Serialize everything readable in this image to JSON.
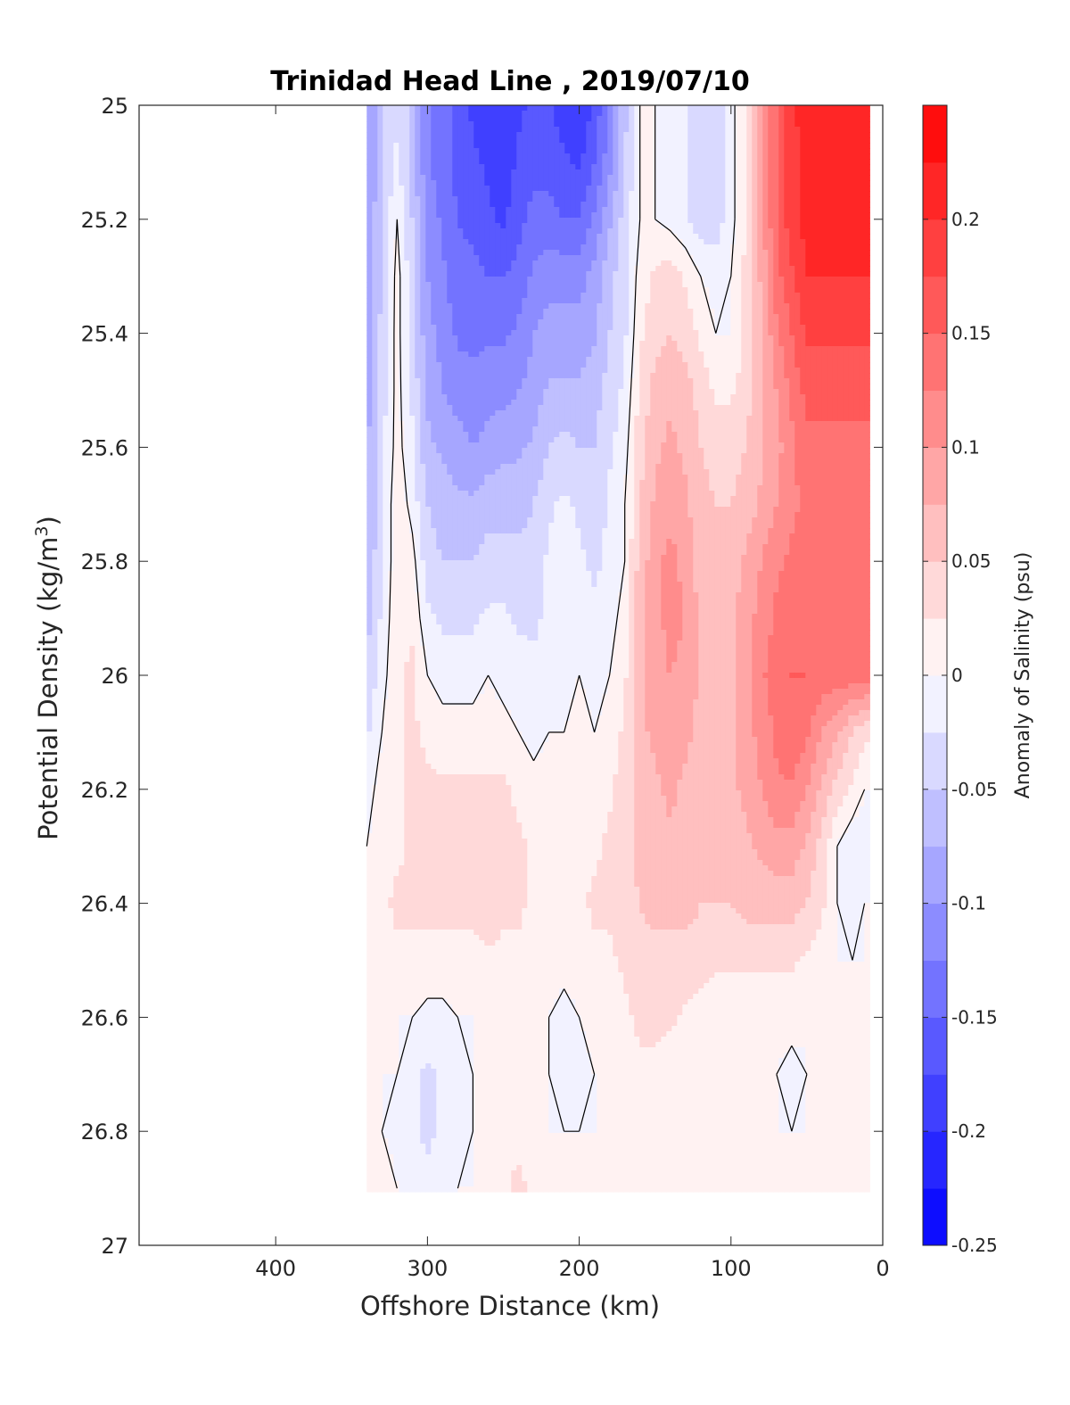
{
  "chart_data": {
    "type": "filled-contour",
    "title": "Trinidad Head Line , 2019/07/10",
    "xlabel": "Offshore Distance (km)",
    "ylabel_main": "Potential Density (kg/m",
    "ylabel_sup": "3",
    "ylabel_close": ")",
    "xlim": [
      490,
      0
    ],
    "x_reversed": true,
    "xticks": [
      400,
      300,
      200,
      100,
      0
    ],
    "xtick_labels": [
      "400",
      "300",
      "200",
      "100",
      "0"
    ],
    "ylim": [
      25,
      27
    ],
    "y_reversed": true,
    "yticks": [
      25,
      25.2,
      25.4,
      25.6,
      25.8,
      26,
      26.2,
      26.4,
      26.6,
      26.8,
      27
    ],
    "ytick_labels": [
      "25",
      "25.2",
      "25.4",
      "25.6",
      "25.8",
      "26",
      "26.2",
      "26.4",
      "26.6",
      "26.8",
      "27"
    ],
    "colorbar": {
      "label": "Anomaly of Salinity (psu)",
      "range": [
        -0.25,
        0.25
      ],
      "ticks": [
        -0.25,
        -0.2,
        -0.15,
        -0.1,
        -0.05,
        0,
        0.05,
        0.1,
        0.15,
        0.2
      ],
      "tick_labels": [
        "-0.25",
        "-0.2",
        "-0.15",
        "-0.1",
        "-0.05",
        "0",
        "0.05",
        "0.1",
        "0.15",
        "0.2"
      ],
      "level_step": 0.025,
      "colormap": "blue-white-red",
      "low_color": "#0000ff",
      "mid_color": "#ffffff",
      "high_color": "#ff0000"
    },
    "grid_x": [
      340,
      330,
      320,
      310,
      300,
      290,
      280,
      270,
      260,
      250,
      240,
      230,
      220,
      210,
      200,
      190,
      180,
      170,
      160,
      150,
      140,
      130,
      120,
      110,
      100,
      90,
      80,
      70,
      60,
      50,
      40,
      30,
      20,
      12
    ],
    "grid_y": [
      25.0,
      25.1,
      25.2,
      25.3,
      25.4,
      25.5,
      25.6,
      25.7,
      25.8,
      25.9,
      26.0,
      26.1,
      26.2,
      26.3,
      26.4,
      26.5,
      26.6,
      26.7,
      26.8,
      26.9
    ],
    "salinity_anomaly": [
      [
        -0.11,
        -0.05,
        -0.03,
        -0.06,
        -0.12,
        -0.14,
        -0.16,
        -0.18,
        -0.19,
        -0.2,
        -0.18,
        -0.17,
        -0.17,
        -0.19,
        -0.2,
        -0.17,
        -0.12,
        -0.06,
        0.0,
        0.0,
        -0.01,
        -0.02,
        -0.04,
        -0.04,
        -0.01,
        0.03,
        0.09,
        0.15,
        0.19,
        0.22,
        0.22,
        0.22,
        0.22,
        0.22
      ],
      [
        -0.11,
        -0.05,
        -0.02,
        -0.06,
        -0.12,
        -0.14,
        -0.16,
        -0.17,
        -0.18,
        -0.19,
        -0.17,
        -0.16,
        -0.16,
        -0.17,
        -0.18,
        -0.15,
        -0.11,
        -0.05,
        0.0,
        0.0,
        -0.01,
        -0.02,
        -0.04,
        -0.04,
        -0.01,
        0.03,
        0.09,
        0.15,
        0.19,
        0.21,
        0.21,
        0.21,
        0.21,
        0.21
      ],
      [
        -0.1,
        -0.05,
        0.0,
        -0.05,
        -0.11,
        -0.13,
        -0.15,
        -0.16,
        -0.17,
        -0.18,
        -0.16,
        -0.14,
        -0.14,
        -0.15,
        -0.15,
        -0.12,
        -0.08,
        -0.04,
        0.0,
        0.0,
        -0.01,
        -0.02,
        -0.04,
        -0.04,
        -0.01,
        0.03,
        0.09,
        0.15,
        0.19,
        0.21,
        0.21,
        0.21,
        0.21,
        0.21
      ],
      [
        -0.1,
        -0.05,
        0.01,
        -0.04,
        -0.1,
        -0.12,
        -0.14,
        -0.14,
        -0.15,
        -0.15,
        -0.14,
        -0.12,
        -0.11,
        -0.11,
        -0.11,
        -0.09,
        -0.06,
        -0.03,
        0.01,
        0.03,
        0.04,
        0.02,
        0.0,
        -0.01,
        0.0,
        0.03,
        0.08,
        0.14,
        0.17,
        0.2,
        0.2,
        0.2,
        0.2,
        0.2
      ],
      [
        -0.1,
        -0.04,
        0.01,
        -0.04,
        -0.09,
        -0.11,
        -0.13,
        -0.13,
        -0.13,
        -0.13,
        -0.12,
        -0.1,
        -0.09,
        -0.09,
        -0.09,
        -0.08,
        -0.05,
        -0.03,
        0.02,
        0.04,
        0.05,
        0.04,
        0.02,
        0.0,
        0.0,
        0.03,
        0.07,
        0.12,
        0.15,
        0.18,
        0.18,
        0.18,
        0.18,
        0.18
      ],
      [
        -0.09,
        -0.04,
        0.01,
        -0.03,
        -0.08,
        -0.1,
        -0.11,
        -0.12,
        -0.11,
        -0.11,
        -0.1,
        -0.09,
        -0.07,
        -0.07,
        -0.07,
        -0.06,
        -0.04,
        -0.02,
        0.03,
        0.06,
        0.07,
        0.06,
        0.04,
        0.02,
        0.02,
        0.04,
        0.07,
        0.1,
        0.13,
        0.16,
        0.16,
        0.16,
        0.16,
        0.16
      ],
      [
        -0.08,
        -0.03,
        0.01,
        -0.02,
        -0.07,
        -0.08,
        -0.09,
        -0.1,
        -0.09,
        -0.08,
        -0.08,
        -0.07,
        -0.05,
        -0.04,
        -0.05,
        -0.05,
        -0.03,
        -0.01,
        0.04,
        0.07,
        0.08,
        0.07,
        0.05,
        0.04,
        0.04,
        0.05,
        0.07,
        0.09,
        0.12,
        0.14,
        0.14,
        0.14,
        0.14,
        0.14
      ],
      [
        -0.08,
        -0.03,
        0.02,
        -0.01,
        -0.05,
        -0.06,
        -0.07,
        -0.07,
        -0.06,
        -0.06,
        -0.06,
        -0.05,
        -0.03,
        -0.02,
        -0.03,
        -0.04,
        -0.02,
        0.0,
        0.05,
        0.08,
        0.09,
        0.08,
        0.06,
        0.05,
        0.05,
        0.06,
        0.08,
        0.1,
        0.12,
        0.13,
        0.13,
        0.13,
        0.13,
        0.13
      ],
      [
        -0.07,
        -0.03,
        0.02,
        0.01,
        -0.04,
        -0.05,
        -0.05,
        -0.05,
        -0.04,
        -0.04,
        -0.04,
        -0.04,
        -0.02,
        -0.01,
        -0.02,
        -0.03,
        -0.02,
        0.0,
        0.06,
        0.09,
        0.11,
        0.09,
        0.06,
        0.05,
        0.06,
        0.08,
        0.1,
        0.12,
        0.13,
        0.14,
        0.14,
        0.14,
        0.14,
        0.14
      ],
      [
        -0.06,
        -0.02,
        0.02,
        0.02,
        -0.02,
        -0.03,
        -0.03,
        -0.03,
        -0.02,
        -0.02,
        -0.03,
        -0.03,
        -0.02,
        -0.01,
        -0.02,
        -0.02,
        -0.01,
        0.01,
        0.07,
        0.09,
        0.11,
        0.1,
        0.07,
        0.06,
        0.07,
        0.09,
        0.11,
        0.13,
        0.14,
        0.15,
        0.15,
        0.15,
        0.15,
        0.15
      ],
      [
        -0.05,
        -0.01,
        0.02,
        0.03,
        0.0,
        -0.01,
        -0.01,
        -0.01,
        0.0,
        -0.01,
        -0.01,
        -0.02,
        -0.01,
        -0.01,
        0.0,
        -0.01,
        0.0,
        0.02,
        0.07,
        0.09,
        0.1,
        0.09,
        0.07,
        0.06,
        0.07,
        0.09,
        0.12,
        0.14,
        0.15,
        0.15,
        0.14,
        0.14,
        0.14,
        0.14
      ],
      [
        -0.03,
        0.0,
        0.02,
        0.03,
        0.02,
        0.01,
        0.01,
        0.01,
        0.01,
        0.01,
        0.0,
        -0.01,
        0.0,
        0.0,
        0.01,
        0.0,
        0.01,
        0.03,
        0.07,
        0.08,
        0.09,
        0.08,
        0.07,
        0.06,
        0.07,
        0.09,
        0.11,
        0.13,
        0.15,
        0.13,
        0.1,
        0.08,
        0.05,
        0.03
      ],
      [
        -0.01,
        0.01,
        0.02,
        0.03,
        0.03,
        0.03,
        0.03,
        0.03,
        0.03,
        0.03,
        0.02,
        0.01,
        0.01,
        0.01,
        0.02,
        0.01,
        0.02,
        0.04,
        0.06,
        0.07,
        0.08,
        0.07,
        0.06,
        0.06,
        0.07,
        0.08,
        0.1,
        0.12,
        0.12,
        0.1,
        0.07,
        0.04,
        0.02,
        0.0
      ],
      [
        0.0,
        0.01,
        0.02,
        0.03,
        0.04,
        0.04,
        0.03,
        0.04,
        0.04,
        0.03,
        0.03,
        0.02,
        0.02,
        0.02,
        0.02,
        0.02,
        0.03,
        0.04,
        0.06,
        0.07,
        0.07,
        0.07,
        0.06,
        0.05,
        0.06,
        0.07,
        0.08,
        0.09,
        0.09,
        0.07,
        0.04,
        0.0,
        -0.02,
        -0.01
      ],
      [
        0.01,
        0.02,
        0.03,
        0.03,
        0.03,
        0.03,
        0.03,
        0.03,
        0.04,
        0.03,
        0.03,
        0.02,
        0.02,
        0.02,
        0.02,
        0.03,
        0.03,
        0.04,
        0.05,
        0.06,
        0.06,
        0.06,
        0.05,
        0.05,
        0.05,
        0.06,
        0.06,
        0.06,
        0.06,
        0.05,
        0.03,
        0.0,
        -0.01,
        0.0
      ],
      [
        0.01,
        0.01,
        0.02,
        0.02,
        0.02,
        0.02,
        0.02,
        0.02,
        0.02,
        0.02,
        0.02,
        0.01,
        0.01,
        0.01,
        0.01,
        0.02,
        0.02,
        0.03,
        0.04,
        0.04,
        0.04,
        0.04,
        0.04,
        0.03,
        0.03,
        0.03,
        0.03,
        0.03,
        0.03,
        0.02,
        0.01,
        0.0,
        0.0,
        0.0
      ],
      [
        0.0,
        0.0,
        0.0,
        0.0,
        -0.01,
        -0.01,
        0.0,
        0.0,
        0.01,
        0.01,
        0.01,
        0.0,
        0.0,
        -0.01,
        0.0,
        0.01,
        0.01,
        0.02,
        0.03,
        0.03,
        0.03,
        0.02,
        0.01,
        0.01,
        0.0,
        0.0,
        0.01,
        0.01,
        0.01,
        0.0,
        0.0,
        0.0,
        0.0,
        0.0
      ],
      [
        0.0,
        0.0,
        0.0,
        -0.02,
        -0.03,
        -0.02,
        -0.01,
        0.0,
        0.01,
        0.01,
        0.01,
        0.0,
        0.0,
        -0.01,
        -0.01,
        0.0,
        0.01,
        0.01,
        0.02,
        0.02,
        0.01,
        0.01,
        0.0,
        0.0,
        0.0,
        0.0,
        0.0,
        0.0,
        -0.01,
        0.0,
        0.0,
        0.0,
        0.0,
        0.0
      ],
      [
        0.0,
        0.0,
        -0.01,
        -0.02,
        -0.03,
        -0.02,
        -0.01,
        0.0,
        0.01,
        0.02,
        0.02,
        0.01,
        0.0,
        0.0,
        0.0,
        0.0,
        0.0,
        0.01,
        0.01,
        0.01,
        0.0,
        0.0,
        0.0,
        0.0,
        0.0,
        0.0,
        0.0,
        0.0,
        0.0,
        0.0,
        0.0,
        0.0,
        0.0,
        0.0
      ],
      [
        0.01,
        0.02,
        0.0,
        -0.01,
        -0.02,
        -0.01,
        0.0,
        0.0,
        0.01,
        0.02,
        0.03,
        0.02,
        0.01,
        0.0,
        0.0,
        0.0,
        0.0,
        0.0,
        0.0,
        0.0,
        0.0,
        0.0,
        0.0,
        0.0,
        0.0,
        0.0,
        0.0,
        0.0,
        0.0,
        0.0,
        0.0,
        0.0,
        0.0,
        0.0
      ]
    ]
  }
}
